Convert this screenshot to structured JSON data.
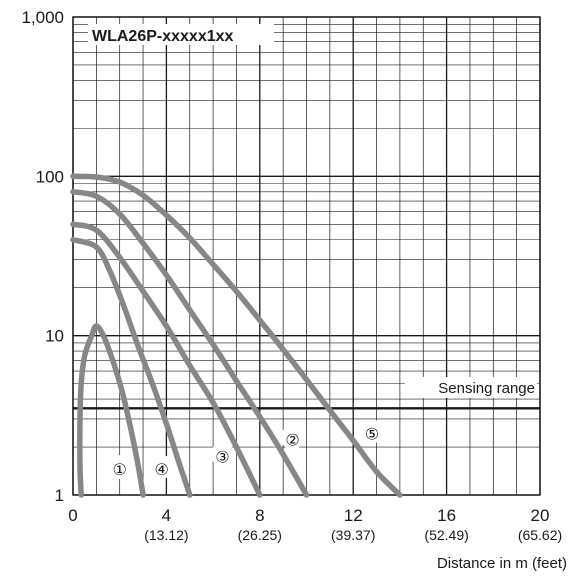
{
  "chart_data": {
    "type": "line",
    "title": "WLA26P-xxxxx1xx",
    "xlabel": "Distance in m (feet)",
    "ylabel": "",
    "xlim": [
      0,
      20
    ],
    "ylim": [
      1,
      1000
    ],
    "y_scale": "log",
    "grid": true,
    "x_ticks": [
      {
        "value": 0,
        "label": "0",
        "sub": ""
      },
      {
        "value": 4,
        "label": "4",
        "sub": "(13.12)"
      },
      {
        "value": 8,
        "label": "8",
        "sub": "(26.25)"
      },
      {
        "value": 12,
        "label": "12",
        "sub": "(39.37)"
      },
      {
        "value": 16,
        "label": "16",
        "sub": "(52.49)"
      },
      {
        "value": 20,
        "label": "20",
        "sub": "(65.62)"
      }
    ],
    "y_ticks": [
      {
        "value": 1,
        "label": "1"
      },
      {
        "value": 10,
        "label": "10"
      },
      {
        "value": 100,
        "label": "100"
      },
      {
        "value": 1000,
        "label": "1,000"
      }
    ],
    "threshold": {
      "value": 3.5,
      "label": "Sensing range"
    },
    "series": [
      {
        "name": "①",
        "label_at": [
          2.0,
          1.5
        ],
        "x": [
          0.35,
          0.3,
          0.3,
          0.35,
          0.5,
          0.8,
          1.0,
          1.3,
          1.7,
          2.1,
          2.5,
          2.8,
          3.0
        ],
        "y": [
          1,
          1.5,
          3,
          5,
          7.5,
          10,
          11.5,
          10,
          7,
          4.5,
          2.5,
          1.5,
          1
        ]
      },
      {
        "name": "②",
        "label_at": [
          9.4,
          2.3
        ],
        "x": [
          0,
          1.0,
          2.0,
          3.0,
          4.0,
          5.0,
          6.0,
          7.0,
          8.0,
          9.0,
          10.0
        ],
        "y": [
          80,
          75,
          58,
          38,
          24,
          14.5,
          8.8,
          5.2,
          3.1,
          1.8,
          1
        ]
      },
      {
        "name": "③",
        "label_at": [
          6.4,
          1.8
        ],
        "x": [
          0,
          1.0,
          2.0,
          3.0,
          4.0,
          5.0,
          6.0,
          7.0,
          8.0
        ],
        "y": [
          50,
          46,
          31,
          19,
          11.5,
          6.5,
          3.8,
          2.0,
          1
        ]
      },
      {
        "name": "④",
        "label_at": [
          3.8,
          1.5
        ],
        "x": [
          0,
          1.0,
          1.6,
          2.2,
          2.8,
          3.4,
          4.0,
          4.6,
          5.0
        ],
        "y": [
          40,
          36,
          25,
          15,
          8.5,
          5,
          2.8,
          1.5,
          1
        ]
      },
      {
        "name": "⑤",
        "label_at": [
          12.8,
          2.5
        ],
        "x": [
          0,
          1.0,
          2.0,
          3.0,
          4.0,
          5.0,
          6.0,
          7.0,
          8.0,
          9.0,
          10.0,
          11.0,
          12.0,
          13.0,
          14.0
        ],
        "y": [
          100,
          99,
          92,
          76,
          57,
          41,
          28,
          19,
          12.5,
          8.2,
          5.3,
          3.4,
          2.2,
          1.4,
          1
        ]
      }
    ],
    "line_color": "#878787",
    "text_color": "#1a1a1a",
    "grid_color": "#1a1a1a"
  }
}
